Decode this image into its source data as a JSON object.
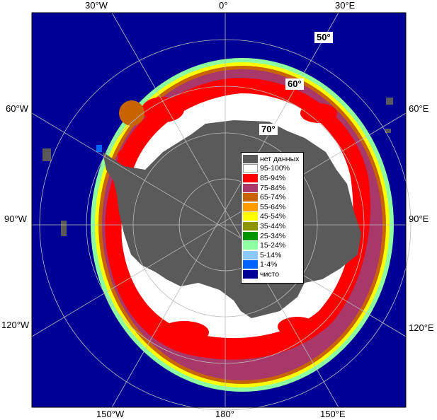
{
  "map": {
    "lon_labels_top": [
      "30°W",
      "0°",
      "30°E"
    ],
    "lon_labels_left": [
      "60°W",
      "90°W",
      "120°W"
    ],
    "lon_labels_right": [
      "60°E",
      "90°E",
      "120°E"
    ],
    "lon_labels_bottom": [
      "150°W",
      "180°",
      "150°E"
    ],
    "lat_labels": [
      "50°",
      "60°",
      "70°"
    ]
  },
  "legend": {
    "items": [
      {
        "label": "нет данных",
        "color": "#5a5a5a"
      },
      {
        "label": "95-100%",
        "color": "#ffffff"
      },
      {
        "label": "85-94%",
        "color": "#ff0000"
      },
      {
        "label": "75-84%",
        "color": "#a8386a"
      },
      {
        "label": "65-74%",
        "color": "#c86400"
      },
      {
        "label": "55-64%",
        "color": "#ff9c00"
      },
      {
        "label": "45-54%",
        "color": "#ffff00"
      },
      {
        "label": "35-44%",
        "color": "#8c9600"
      },
      {
        "label": "25-34%",
        "color": "#009600"
      },
      {
        "label": "15-24%",
        "color": "#8cffa0"
      },
      {
        "label": "5-14%",
        "color": "#8cc8ff"
      },
      {
        "label": "1-4%",
        "color": "#0064ff"
      },
      {
        "label": "чисто",
        "color": "#000096"
      }
    ]
  }
}
